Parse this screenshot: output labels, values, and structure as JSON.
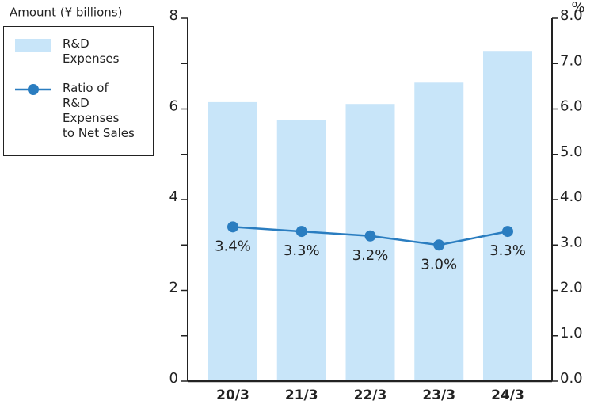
{
  "chart_data": {
    "type": "bar_line",
    "y_label": "Amount (¥ billions)",
    "y2_label": "%",
    "categories": [
      "20/3",
      "21/3",
      "22/3",
      "23/3",
      "24/3"
    ],
    "series": [
      {
        "name": "R&D\nExpenses",
        "type": "bar",
        "color": "#c8e5f9",
        "values": [
          6.15,
          5.75,
          6.11,
          6.58,
          7.28
        ]
      },
      {
        "name": "Ratio of\nR&D\nExpenses\nto Net Sales",
        "type": "line",
        "axis": "y2",
        "color": "#2a7dc0",
        "values": [
          3.4,
          3.3,
          3.2,
          3.0,
          3.3
        ],
        "value_labels": [
          "3.4%",
          "3.3%",
          "3.2%",
          "3.0%",
          "3.3%"
        ]
      }
    ],
    "ylim": [
      0,
      8
    ],
    "yticks": [
      0,
      2,
      4,
      6,
      8
    ],
    "yticks_minor": [
      1,
      3,
      5,
      7
    ],
    "y2lim": [
      0,
      8
    ],
    "y2ticks": [
      {
        "value": 0,
        "label": "0.0"
      },
      {
        "value": 1,
        "label": "1.0"
      },
      {
        "value": 2,
        "label": "2.0"
      },
      {
        "value": 3,
        "label": "3.0"
      },
      {
        "value": 4,
        "label": "4.0"
      },
      {
        "value": 5,
        "label": "5.0"
      },
      {
        "value": 6,
        "label": "6.0"
      },
      {
        "value": 7,
        "label": "7.0"
      },
      {
        "value": 8,
        "label": "8.0"
      }
    ],
    "legend": "top-left"
  }
}
